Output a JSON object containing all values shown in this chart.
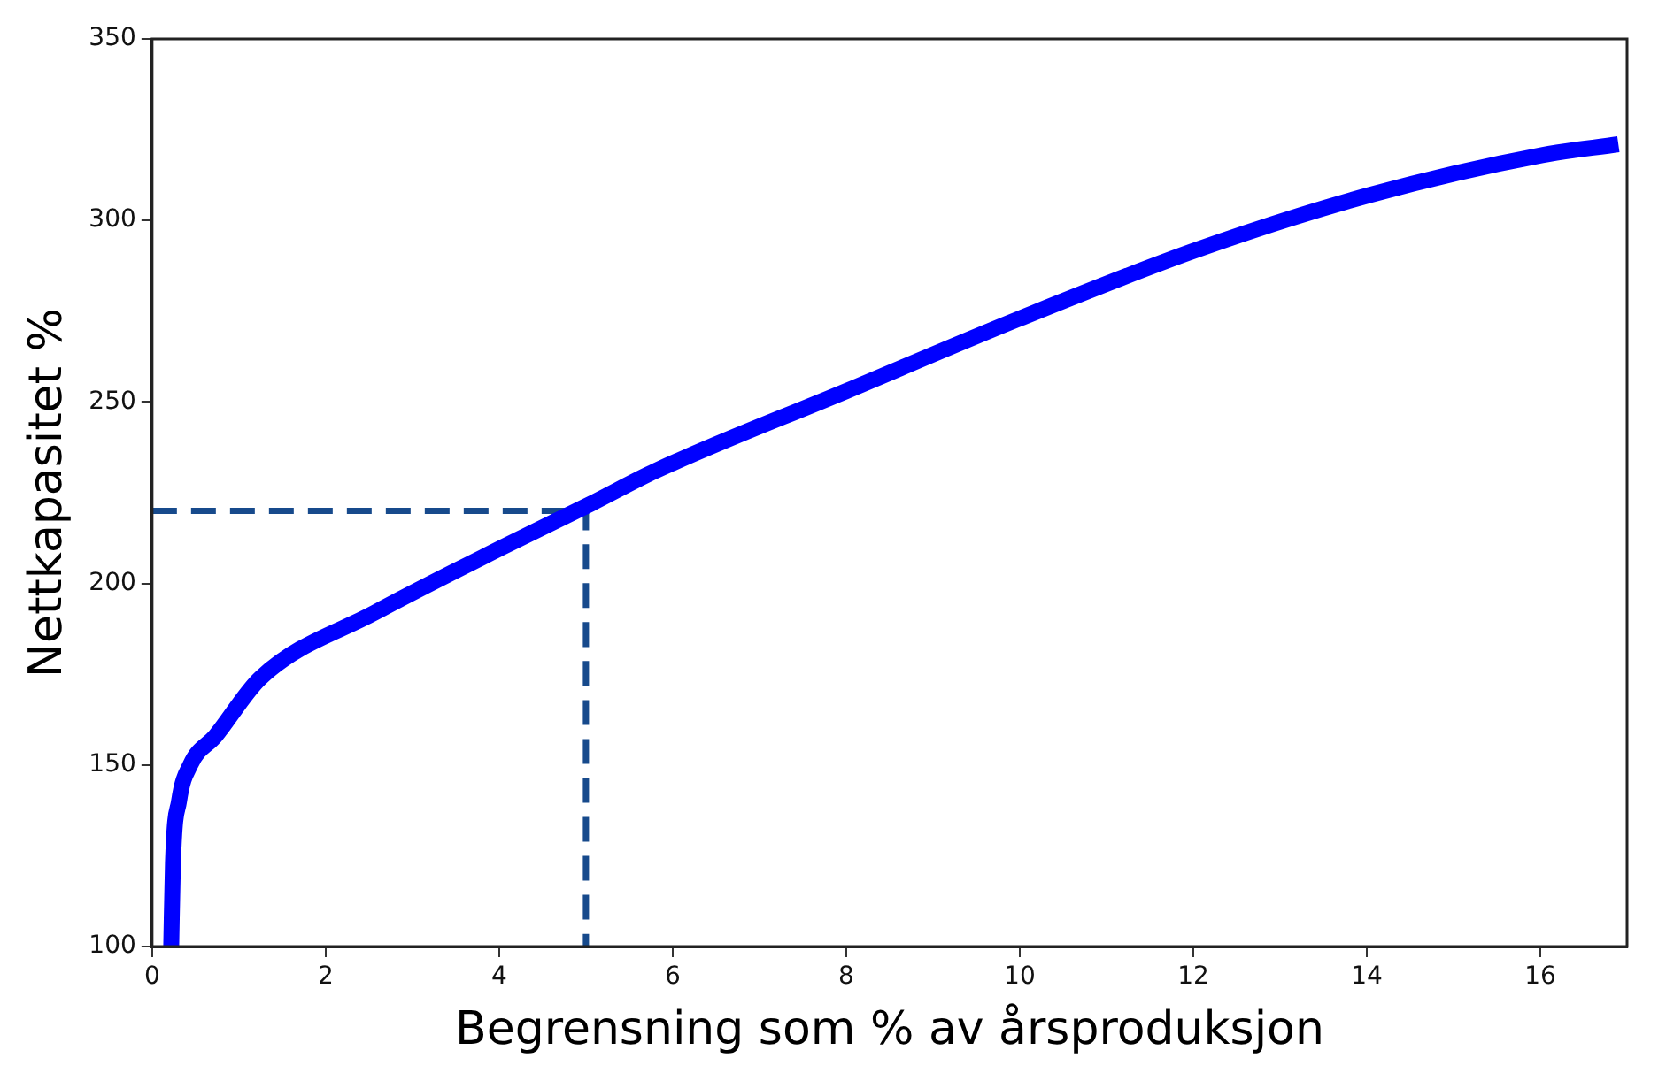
{
  "chart_data": {
    "type": "line",
    "xlabel": "Begrensning som % av årsproduksjon",
    "ylabel": "Nettkapasitet %",
    "xlim": [
      0,
      17
    ],
    "xticks": [
      0,
      2,
      4,
      6,
      8,
      10,
      12,
      14,
      16
    ],
    "ylim": [
      100,
      350
    ],
    "yticks": [
      100,
      150,
      200,
      250,
      300,
      350
    ],
    "grid": false,
    "legend": false,
    "marker": "none",
    "series": [
      {
        "color": "#0000ff",
        "line_style": "solid",
        "x": [
          0.22,
          0.24,
          0.31,
          0.44,
          0.73,
          1.25,
          2.57,
          4.04,
          5.06,
          5.8,
          8.0,
          10.0,
          12.05,
          14.03,
          16.02,
          16.9
        ],
        "values": [
          100,
          123,
          140,
          150,
          158,
          174,
          192,
          210,
          222,
          231,
          253,
          273,
          292,
          307,
          318,
          321
        ]
      },
      {
        "type": "line",
        "color": "#174a8c",
        "line_style": "dashed",
        "x": [
          0,
          5,
          5
        ],
        "values": [
          220,
          220,
          100
        ]
      }
    ]
  }
}
